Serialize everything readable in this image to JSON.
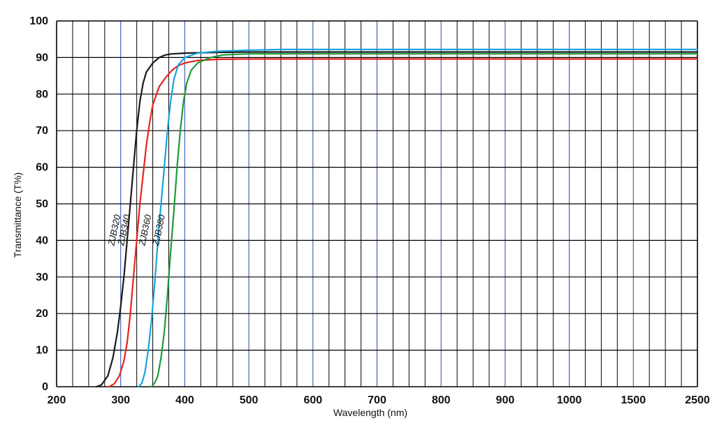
{
  "chart_data": {
    "type": "line",
    "title": "",
    "xlabel": "Wavelength (nm)",
    "ylabel": "Transmittance (T%)",
    "x_tick_labels": [
      "200",
      "300",
      "400",
      "500",
      "600",
      "700",
      "800",
      "900",
      "1000",
      "1500",
      "2500"
    ],
    "y_tick_labels": [
      "0",
      "10",
      "20",
      "30",
      "40",
      "50",
      "60",
      "70",
      "80",
      "90",
      "100"
    ],
    "ylim": [
      0,
      100
    ],
    "grid": true,
    "series": [
      {
        "name": "ZJB320",
        "color": "#1a1a1a",
        "points": [
          [
            262,
            0
          ],
          [
            270,
            0.5
          ],
          [
            280,
            3
          ],
          [
            288,
            8
          ],
          [
            295,
            15
          ],
          [
            300,
            22
          ],
          [
            305,
            30
          ],
          [
            310,
            40
          ],
          [
            315,
            50
          ],
          [
            320,
            60
          ],
          [
            325,
            70
          ],
          [
            330,
            78
          ],
          [
            335,
            83
          ],
          [
            340,
            86
          ],
          [
            350,
            88.5
          ],
          [
            360,
            90
          ],
          [
            370,
            90.7
          ],
          [
            380,
            91
          ],
          [
            400,
            91.2
          ],
          [
            420,
            91.3
          ],
          [
            450,
            91.4
          ],
          [
            500,
            91.5
          ],
          [
            2500,
            91.5
          ]
        ]
      },
      {
        "name": "ZJB340",
        "color": "#e8231c",
        "points": [
          [
            282,
            0
          ],
          [
            290,
            0.8
          ],
          [
            298,
            3
          ],
          [
            305,
            7
          ],
          [
            310,
            12
          ],
          [
            315,
            20
          ],
          [
            320,
            30
          ],
          [
            325,
            40
          ],
          [
            330,
            50
          ],
          [
            335,
            58
          ],
          [
            340,
            66
          ],
          [
            345,
            72
          ],
          [
            350,
            77
          ],
          [
            360,
            82
          ],
          [
            370,
            84.5
          ],
          [
            380,
            86.5
          ],
          [
            390,
            87.8
          ],
          [
            400,
            88.5
          ],
          [
            420,
            89.2
          ],
          [
            450,
            89.5
          ],
          [
            500,
            89.6
          ],
          [
            2500,
            89.6
          ]
        ]
      },
      {
        "name": "ZJB360",
        "color": "#1aa3e0",
        "points": [
          [
            328,
            0
          ],
          [
            333,
            1
          ],
          [
            338,
            4
          ],
          [
            343,
            10
          ],
          [
            348,
            18
          ],
          [
            353,
            28
          ],
          [
            358,
            40
          ],
          [
            363,
            50
          ],
          [
            368,
            60
          ],
          [
            373,
            70
          ],
          [
            378,
            78
          ],
          [
            383,
            84
          ],
          [
            390,
            88
          ],
          [
            400,
            90
          ],
          [
            420,
            91.2
          ],
          [
            450,
            91.7
          ],
          [
            500,
            92
          ],
          [
            550,
            92.2
          ],
          [
            2500,
            92.2
          ]
        ]
      },
      {
        "name": "ZJB380",
        "color": "#1e9a3a",
        "points": [
          [
            348,
            0
          ],
          [
            353,
            1
          ],
          [
            358,
            3
          ],
          [
            363,
            8
          ],
          [
            368,
            15
          ],
          [
            373,
            25
          ],
          [
            378,
            37
          ],
          [
            383,
            48
          ],
          [
            388,
            60
          ],
          [
            393,
            70
          ],
          [
            398,
            78
          ],
          [
            403,
            83
          ],
          [
            410,
            86.5
          ],
          [
            420,
            88.5
          ],
          [
            440,
            90
          ],
          [
            460,
            90.7
          ],
          [
            500,
            91
          ],
          [
            2500,
            91
          ]
        ]
      }
    ]
  }
}
